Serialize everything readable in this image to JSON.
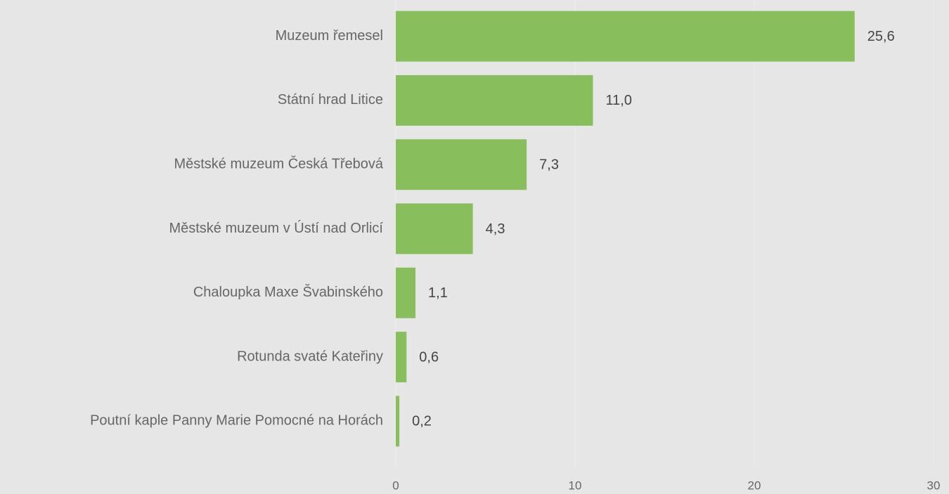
{
  "chart_data": {
    "type": "barh",
    "categories": [
      "Muzeum řemesel",
      "Státní hrad Litice",
      "Městské muzeum Česká Třebová",
      "Městské muzeum v Ústí nad Orlicí",
      "Chaloupka Maxe Švabinského",
      "Rotunda svaté Kateřiny",
      "Poutní kaple Panny Marie Pomocné na Horách"
    ],
    "values": [
      25.6,
      11.0,
      7.3,
      4.3,
      1.1,
      0.6,
      0.2
    ],
    "value_labels": [
      "25,6",
      "11,0",
      "7,3",
      "4,3",
      "1,1",
      "0,6",
      "0,2"
    ],
    "color": "#88bf5c",
    "xlim": [
      0,
      30
    ],
    "xticks": [
      0,
      10,
      20,
      30
    ],
    "grid": true
  }
}
